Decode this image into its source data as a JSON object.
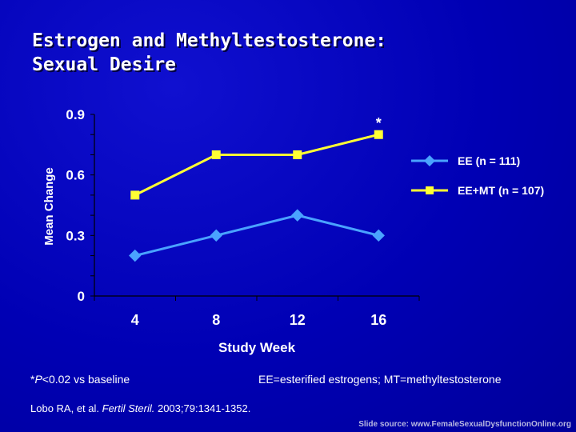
{
  "title_line1": "Estrogen and Methyltestosterone:",
  "title_line2": "Sexual Desire",
  "footnote_prefix": "*",
  "footnote_p": "P",
  "footnote_rest": "<0.02 vs baseline",
  "abbreviations": "EE=esterified estrogens; MT=methyltestosterone",
  "citation_authors": "Lobo RA, et al. ",
  "citation_journal": "Fertil Steril.",
  "citation_details": " 2003;79:1341-1352.",
  "slide_source": "Slide source: www.FemaleSexualDysfunctionOnline.org",
  "colors": {
    "background": "#0000b4",
    "ee_series": "#4aa3ff",
    "ee_mt_series": "#ffff33",
    "text": "#ffffff"
  },
  "chart_data": {
    "type": "line",
    "xlabel": "Study Week",
    "ylabel": "Mean Change",
    "x": [
      "4",
      "8",
      "12",
      "16"
    ],
    "ylim": [
      0,
      0.9
    ],
    "yticks": [
      "0",
      "0.3",
      "0.6",
      "0.9"
    ],
    "ytick_values": [
      0,
      0.3,
      0.6,
      0.9
    ],
    "series": [
      {
        "name": "EE (n = 111)",
        "values": [
          0.2,
          0.3,
          0.4,
          0.3
        ],
        "marker": "diamond",
        "color": "#4aa3ff"
      },
      {
        "name": "EE+MT (n = 107)",
        "values": [
          0.5,
          0.7,
          0.7,
          0.8
        ],
        "marker": "square",
        "color": "#ffff33"
      }
    ],
    "annotations": [
      {
        "text": "*",
        "x": "16",
        "series": "EE+MT (n = 107)"
      }
    ],
    "legend": "right",
    "grid": false
  }
}
